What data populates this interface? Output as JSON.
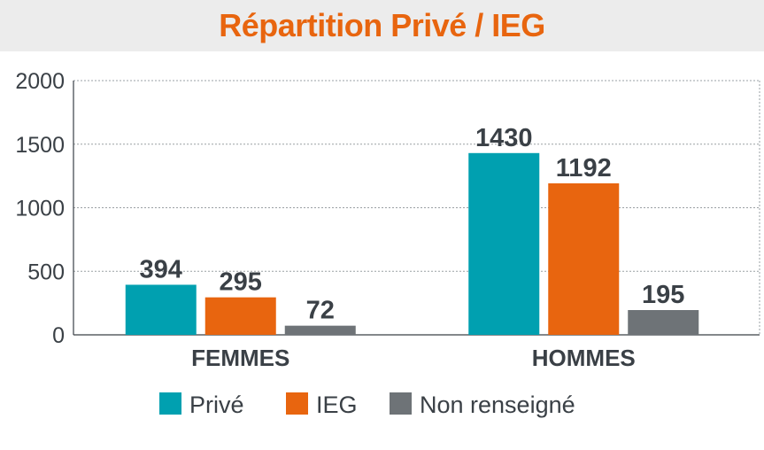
{
  "chart_data": {
    "type": "bar",
    "title": "Répartition Privé / IEG",
    "categories": [
      "FEMMES",
      "HOMMES"
    ],
    "series": [
      {
        "name": "Privé",
        "color": "#00a0b0",
        "values": [
          394,
          1430
        ]
      },
      {
        "name": "IEG",
        "color": "#e8650f",
        "values": [
          295,
          1192
        ]
      },
      {
        "name": "Non renseigné",
        "color": "#6e7377",
        "values": [
          72,
          195
        ]
      }
    ],
    "ylim": [
      0,
      2000
    ],
    "yticks": [
      0,
      500,
      1000,
      1500,
      2000
    ],
    "grid": true,
    "legend": "bottom",
    "xlabel": "",
    "ylabel": ""
  }
}
